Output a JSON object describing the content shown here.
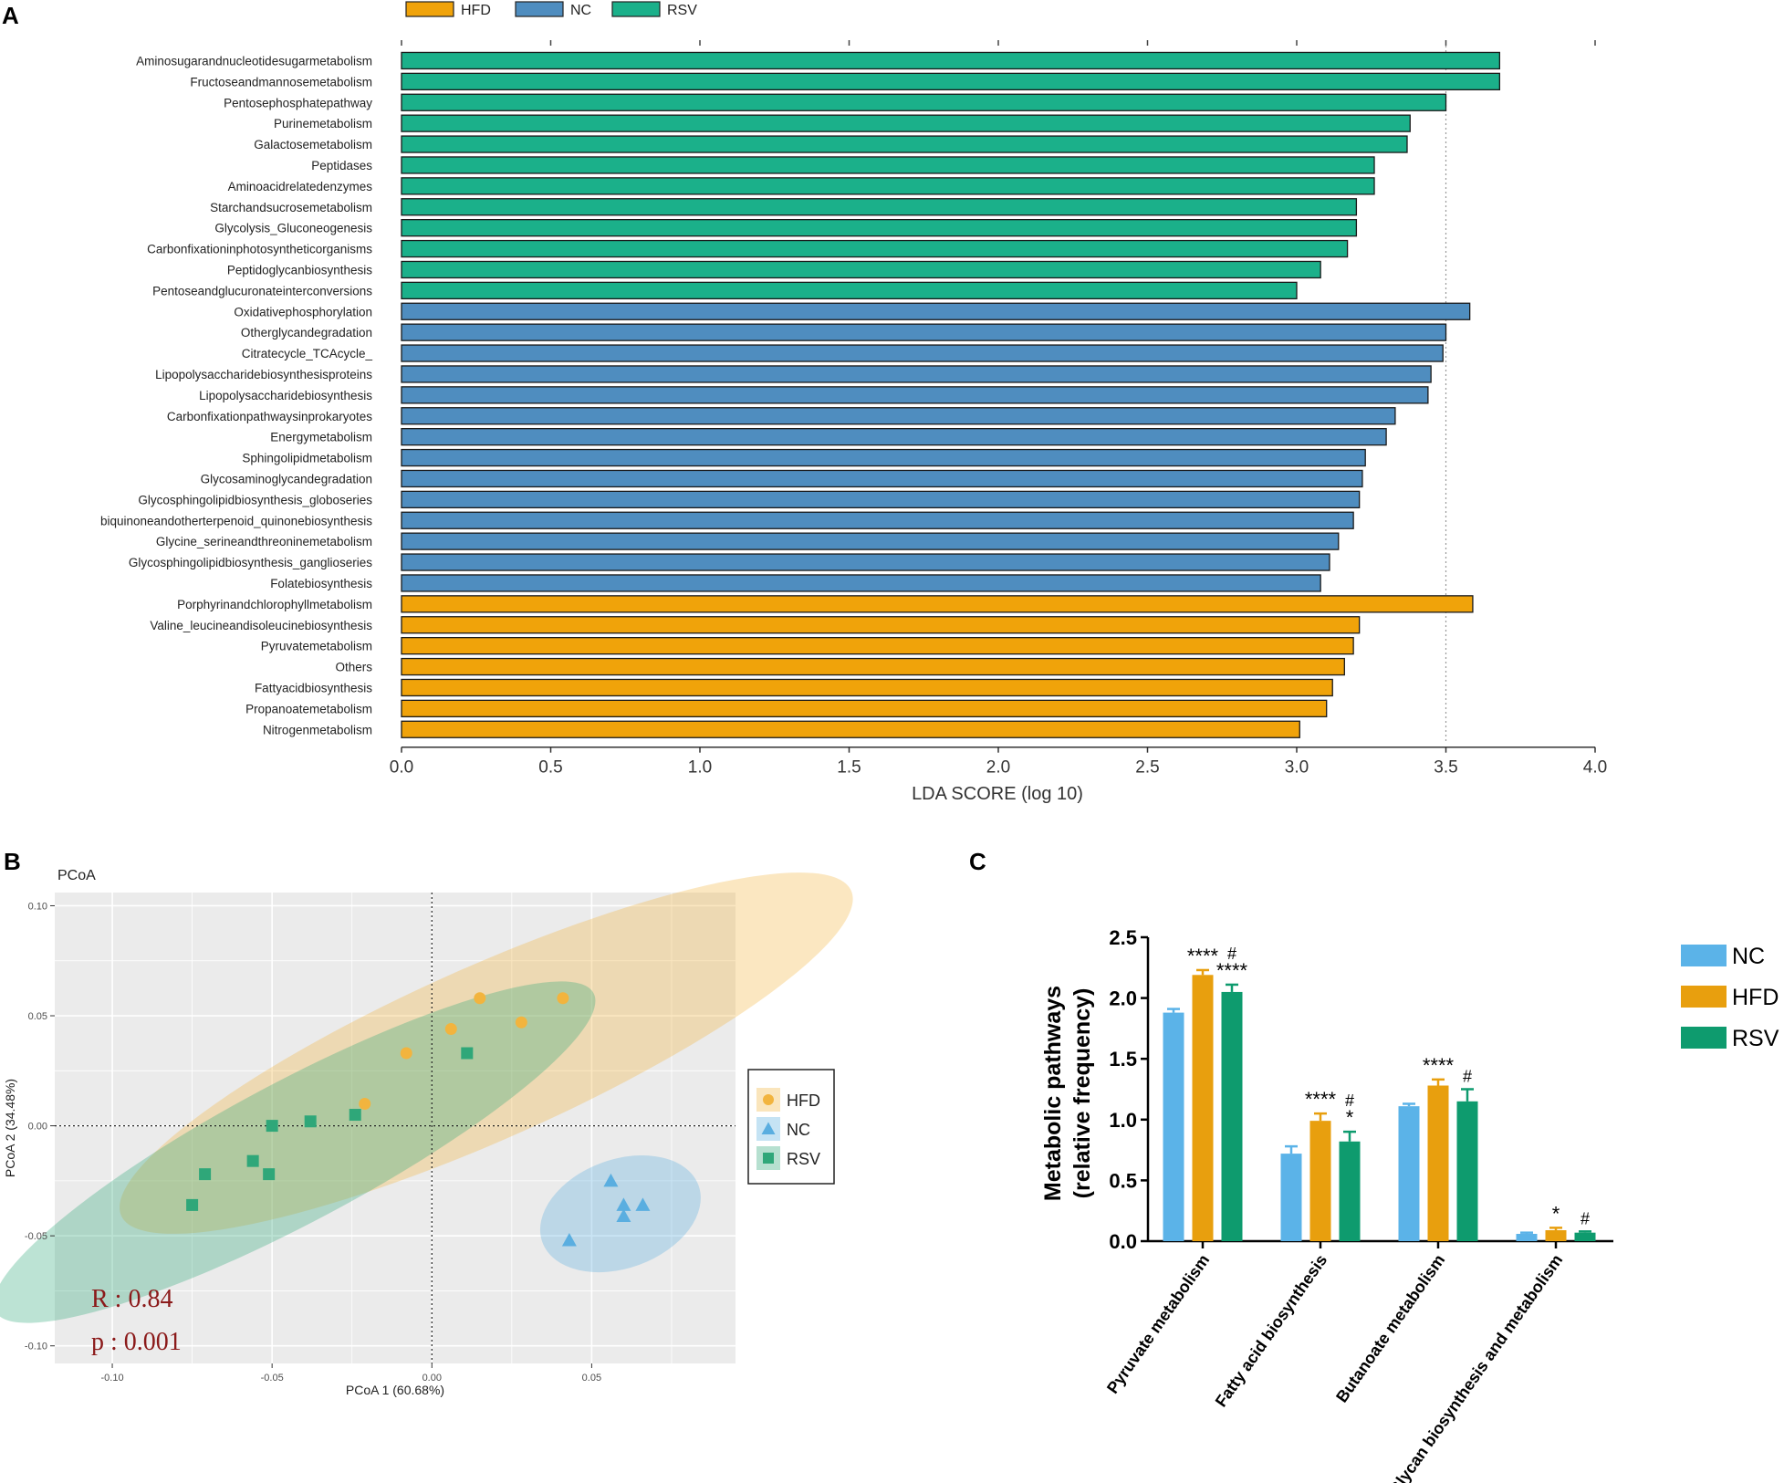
{
  "colors": {
    "HFD": "#F0A30A",
    "NC": "#4F8DBF",
    "RSV": "#1BB08A",
    "c_NC": "#5BB3E8",
    "c_HFD": "#E89F0E",
    "c_RSV": "#0E9B6E",
    "pcoa_HFD": "#F2B43E",
    "pcoa_NC": "#5AAEE0",
    "pcoa_RSV": "#2FA779",
    "pcoa_bg": "#EBEBEB",
    "stat": "#8B1A1A"
  },
  "panels": {
    "a": "A",
    "b": "B",
    "c": "C"
  },
  "chart_data": [
    {
      "type": "bar",
      "orientation": "horizontal",
      "title": "",
      "xlabel": "LDA SCORE (log 10)",
      "xlim": [
        0,
        4
      ],
      "xticks": [
        "0.0",
        "0.5",
        "1.0",
        "1.5",
        "2.0",
        "2.5",
        "3.0",
        "3.5",
        "4.0"
      ],
      "reference_line": 3.5,
      "legend": [
        {
          "name": "HFD",
          "color_key": "HFD"
        },
        {
          "name": "NC",
          "color_key": "NC"
        },
        {
          "name": "RSV",
          "color_key": "RSV"
        }
      ],
      "bars": [
        {
          "label": "Aminosugarandnucleotidesugarmetabolism",
          "value": 3.68,
          "group": "RSV"
        },
        {
          "label": "Fructoseandmannosemetabolism",
          "value": 3.68,
          "group": "RSV"
        },
        {
          "label": "Pentosephosphatepathway",
          "value": 3.5,
          "group": "RSV"
        },
        {
          "label": "Purinemetabolism",
          "value": 3.38,
          "group": "RSV"
        },
        {
          "label": "Galactosemetabolism",
          "value": 3.37,
          "group": "RSV"
        },
        {
          "label": "Peptidases",
          "value": 3.26,
          "group": "RSV"
        },
        {
          "label": "Aminoacidrelatedenzymes",
          "value": 3.26,
          "group": "RSV"
        },
        {
          "label": "Starchandsucrosemetabolism",
          "value": 3.2,
          "group": "RSV"
        },
        {
          "label": "Glycolysis_Gluconeogenesis",
          "value": 3.2,
          "group": "RSV"
        },
        {
          "label": "Carbonfixationinphotosyntheticorganisms",
          "value": 3.17,
          "group": "RSV"
        },
        {
          "label": "Peptidoglycanbiosynthesis",
          "value": 3.08,
          "group": "RSV"
        },
        {
          "label": "Pentoseandglucuronateinterconversions",
          "value": 3.0,
          "group": "RSV"
        },
        {
          "label": "Oxidativephosphorylation",
          "value": 3.58,
          "group": "NC"
        },
        {
          "label": "Otherglycandegradation",
          "value": 3.5,
          "group": "NC"
        },
        {
          "label": "Citratecycle_TCAcycle_",
          "value": 3.49,
          "group": "NC"
        },
        {
          "label": "Lipopolysaccharidebiosynthesisproteins",
          "value": 3.45,
          "group": "NC"
        },
        {
          "label": "Lipopolysaccharidebiosynthesis",
          "value": 3.44,
          "group": "NC"
        },
        {
          "label": "Carbonfixationpathwaysinprokaryotes",
          "value": 3.33,
          "group": "NC"
        },
        {
          "label": "Energymetabolism",
          "value": 3.3,
          "group": "NC"
        },
        {
          "label": "Sphingolipidmetabolism",
          "value": 3.23,
          "group": "NC"
        },
        {
          "label": "Glycosaminoglycandegradation",
          "value": 3.22,
          "group": "NC"
        },
        {
          "label": "Glycosphingolipidbiosynthesis_globoseries",
          "value": 3.21,
          "group": "NC"
        },
        {
          "label": "biquinoneandotherterpenoid_quinonebiosynthesis",
          "value": 3.19,
          "group": "NC"
        },
        {
          "label": "Glycine_serineandthreoninemetabolism",
          "value": 3.14,
          "group": "NC"
        },
        {
          "label": "Glycosphingolipidbiosynthesis_ganglioseries",
          "value": 3.11,
          "group": "NC"
        },
        {
          "label": "Folatebiosynthesis",
          "value": 3.08,
          "group": "NC"
        },
        {
          "label": "Porphyrinandchlorophyllmetabolism",
          "value": 3.59,
          "group": "HFD"
        },
        {
          "label": "Valine_leucineandisoleucinebiosynthesis",
          "value": 3.21,
          "group": "HFD"
        },
        {
          "label": "Pyruvatemetabolism",
          "value": 3.19,
          "group": "HFD"
        },
        {
          "label": "Others",
          "value": 3.16,
          "group": "HFD"
        },
        {
          "label": "Fattyacidbiosynthesis",
          "value": 3.12,
          "group": "HFD"
        },
        {
          "label": "Propanoatemetabolism",
          "value": 3.1,
          "group": "HFD"
        },
        {
          "label": "Nitrogenmetabolism",
          "value": 3.01,
          "group": "HFD"
        }
      ]
    },
    {
      "type": "scatter",
      "title": "PCoA",
      "xlabel": "PCoA 1 (60.68%)",
      "ylabel": "PCoA 2 (34.48%)",
      "xlim": [
        -0.118,
        0.095
      ],
      "ylim": [
        -0.108,
        0.106
      ],
      "xticks": [
        -0.1,
        -0.05,
        0.0,
        0.05
      ],
      "yticks": [
        0.1,
        0.05,
        0.0,
        -0.05,
        -0.1
      ],
      "xtick_labels": [
        "-0.10",
        "-0.05",
        "0.00",
        "0.05"
      ],
      "ytick_labels": [
        "0.10",
        "0.05",
        "0.00",
        "-0.05",
        "-0.10"
      ],
      "legend": [
        "HFD",
        "NC",
        "RSV"
      ],
      "annotations": [
        "R : 0.84",
        "p : 0.001"
      ],
      "series": [
        {
          "name": "HFD",
          "marker": "circle",
          "points": [
            [
              0.015,
              0.058
            ],
            [
              0.041,
              0.058
            ],
            [
              0.006,
              0.044
            ],
            [
              0.028,
              0.047
            ],
            [
              -0.008,
              0.033
            ],
            [
              -0.021,
              0.01
            ]
          ],
          "ellipse": {
            "cx": 0.017,
            "cy": 0.033,
            "rx": 0.125,
            "ry": 0.027,
            "angle_deg": 24
          }
        },
        {
          "name": "NC",
          "marker": "triangle",
          "points": [
            [
              0.056,
              -0.025
            ],
            [
              0.06,
              -0.036
            ],
            [
              0.066,
              -0.036
            ],
            [
              0.06,
              -0.041
            ],
            [
              0.043,
              -0.052
            ]
          ],
          "ellipse": {
            "cx": 0.059,
            "cy": -0.04,
            "rx": 0.026,
            "ry": 0.017,
            "angle_deg": 20
          }
        },
        {
          "name": "RSV",
          "marker": "square",
          "points": [
            [
              0.011,
              0.033
            ],
            [
              -0.024,
              0.005
            ],
            [
              -0.038,
              0.002
            ],
            [
              -0.05,
              0.0
            ],
            [
              -0.071,
              -0.022
            ],
            [
              -0.056,
              -0.016
            ],
            [
              -0.051,
              -0.022
            ],
            [
              -0.075,
              -0.036
            ]
          ],
          "ellipse": {
            "cx": -0.043,
            "cy": -0.012,
            "rx": 0.106,
            "ry": 0.022,
            "angle_deg": 28
          }
        }
      ]
    },
    {
      "type": "bar",
      "title": "",
      "ylabel_line1": "Metabolic pathways",
      "ylabel_line2": "(relative frequency)",
      "ylim": [
        0,
        2.5
      ],
      "yticks": [
        "0.0",
        "0.5",
        "1.0",
        "1.5",
        "2.0",
        "2.5"
      ],
      "categories": [
        "Pyruvate metabolism",
        "Fatty acid biosynthesis",
        "Butanoate metabolism",
        "Glycan biosynthesis and metabolism"
      ],
      "series": [
        {
          "name": "NC",
          "values": [
            1.88,
            0.72,
            1.11,
            0.06
          ],
          "errors": [
            0.03,
            0.06,
            0.02,
            0.01
          ]
        },
        {
          "name": "HFD",
          "values": [
            2.19,
            0.99,
            1.28,
            0.09
          ],
          "errors": [
            0.04,
            0.06,
            0.05,
            0.02
          ]
        },
        {
          "name": "RSV",
          "values": [
            2.05,
            0.82,
            1.15,
            0.07
          ],
          "errors": [
            0.06,
            0.08,
            0.1,
            0.01
          ]
        }
      ],
      "significance": [
        {
          "category": 0,
          "series": "HFD",
          "lines": [
            "****"
          ]
        },
        {
          "category": 0,
          "series": "RSV",
          "lines": [
            "#",
            "****"
          ]
        },
        {
          "category": 1,
          "series": "HFD",
          "lines": [
            "****"
          ]
        },
        {
          "category": 1,
          "series": "RSV",
          "lines": [
            "#",
            "*"
          ]
        },
        {
          "category": 2,
          "series": "HFD",
          "lines": [
            "****"
          ]
        },
        {
          "category": 2,
          "series": "RSV",
          "lines": [
            "#"
          ]
        },
        {
          "category": 3,
          "series": "HFD",
          "lines": [
            "*"
          ]
        },
        {
          "category": 3,
          "series": "RSV",
          "lines": [
            "#"
          ]
        }
      ]
    }
  ]
}
